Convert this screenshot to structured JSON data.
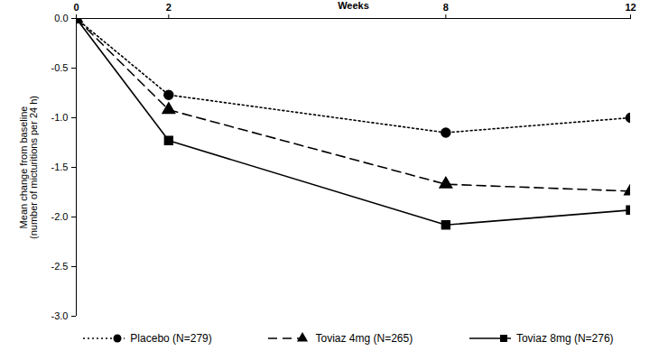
{
  "chart_data": {
    "type": "line",
    "x_label": "Weeks",
    "y_label": "Mean change from baseline\n(number of micturitions per 24 h)",
    "x": [
      0,
      2,
      8,
      12
    ],
    "series": [
      {
        "name": "Placebo (N=279)",
        "color": "#000000",
        "values": [
          0,
          -0.77,
          -1.15,
          -1.0
        ],
        "marker": "circle",
        "line_style": "dotted"
      },
      {
        "name": "Toviaz 4mg (N=265)",
        "color": "#000000",
        "values": [
          0,
          -0.92,
          -1.67,
          -1.74
        ],
        "marker": "triangle",
        "line_style": "dashed"
      },
      {
        "name": "Toviaz 8mg (N=276)",
        "color": "#000000",
        "values": [
          0,
          -1.23,
          -2.08,
          -1.93
        ],
        "marker": "square",
        "line_style": "solid"
      }
    ],
    "xlim": [
      0,
      12
    ],
    "xticks": [
      0,
      2,
      8,
      12
    ],
    "ylim": [
      -3,
      0
    ],
    "yticks": [
      {
        "value": 0,
        "label": "0.0"
      },
      {
        "value": -0.5,
        "label": "-0.5"
      },
      {
        "value": -1,
        "label": "-1.0"
      },
      {
        "value": -1.5,
        "label": "-1.5"
      },
      {
        "value": -2,
        "label": "-2.0"
      },
      {
        "value": -2.5,
        "label": "-2.5"
      },
      {
        "value": -3,
        "label": "-3.0"
      }
    ],
    "legend": "bottom"
  }
}
